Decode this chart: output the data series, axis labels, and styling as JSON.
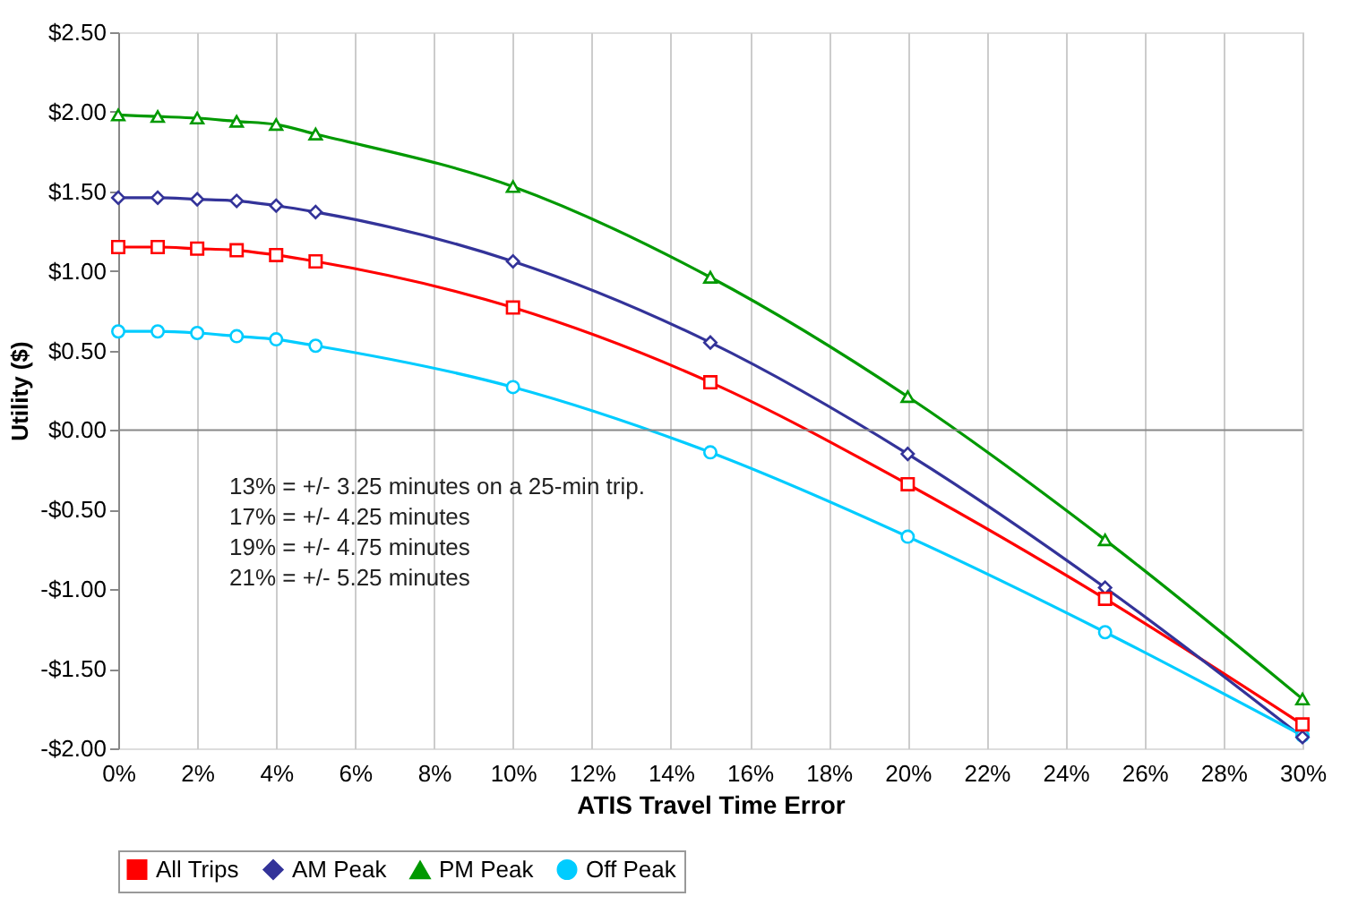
{
  "chart_data": {
    "type": "line",
    "xlabel": "ATIS Travel Time Error",
    "ylabel": "Utility ($)",
    "x": [
      0,
      1,
      2,
      3,
      4,
      5,
      10,
      15,
      20,
      25,
      30
    ],
    "series": [
      {
        "name": "All Trips",
        "color": "#ff0000",
        "marker": "square",
        "values": [
          1.15,
          1.15,
          1.14,
          1.13,
          1.1,
          1.06,
          0.77,
          0.3,
          -0.34,
          -1.06,
          -1.85
        ]
      },
      {
        "name": "AM Peak",
        "color": "#333399",
        "marker": "diamond",
        "values": [
          1.46,
          1.46,
          1.45,
          1.44,
          1.41,
          1.37,
          1.06,
          0.55,
          -0.15,
          -0.99,
          -1.93
        ]
      },
      {
        "name": "PM Peak",
        "color": "#009900",
        "marker": "triangle",
        "values": [
          1.98,
          1.97,
          1.96,
          1.94,
          1.92,
          1.86,
          1.53,
          0.96,
          0.21,
          -0.69,
          -1.69
        ]
      },
      {
        "name": "Off Peak",
        "color": "#00ccff",
        "marker": "circle",
        "values": [
          0.62,
          0.62,
          0.61,
          0.59,
          0.57,
          0.53,
          0.27,
          -0.14,
          -0.67,
          -1.27,
          -1.92
        ]
      }
    ],
    "xlim": [
      0,
      30
    ],
    "xticks": [
      {
        "value": 0,
        "label": "0%"
      },
      {
        "value": 2,
        "label": "2%"
      },
      {
        "value": 4,
        "label": "4%"
      },
      {
        "value": 6,
        "label": "6%"
      },
      {
        "value": 8,
        "label": "8%"
      },
      {
        "value": 10,
        "label": "10%"
      },
      {
        "value": 12,
        "label": "12%"
      },
      {
        "value": 14,
        "label": "14%"
      },
      {
        "value": 16,
        "label": "16%"
      },
      {
        "value": 18,
        "label": "18%"
      },
      {
        "value": 20,
        "label": "20%"
      },
      {
        "value": 22,
        "label": "22%"
      },
      {
        "value": 24,
        "label": "24%"
      },
      {
        "value": 26,
        "label": "26%"
      },
      {
        "value": 28,
        "label": "28%"
      },
      {
        "value": 30,
        "label": "30%"
      }
    ],
    "ylim": [
      -2,
      2.5
    ],
    "yticks": [
      {
        "value": -2,
        "label": "-$2.00"
      },
      {
        "value": -1.5,
        "label": "-$1.50"
      },
      {
        "value": -1,
        "label": "-$1.00"
      },
      {
        "value": -0.5,
        "label": "-$0.50"
      },
      {
        "value": 0,
        "label": "$0.00"
      },
      {
        "value": 0.5,
        "label": "$0.50"
      },
      {
        "value": 1,
        "label": "$1.00"
      },
      {
        "value": 1.5,
        "label": "$1.50"
      },
      {
        "value": 2,
        "label": "$2.00"
      },
      {
        "value": 2.5,
        "label": "$2.50"
      }
    ],
    "ref_lines": [
      {
        "axis": "y",
        "value": 0,
        "label": null,
        "color": "#888888"
      }
    ],
    "annotations": [
      "13% = +/- 3.25 minutes on a 25-min trip.",
      "17% = +/- 4.25 minutes",
      "19% = +/- 4.75 minutes",
      "21% = +/- 5.25 minutes"
    ],
    "grid": "x",
    "legend": "bottom",
    "line_style": "solid"
  }
}
